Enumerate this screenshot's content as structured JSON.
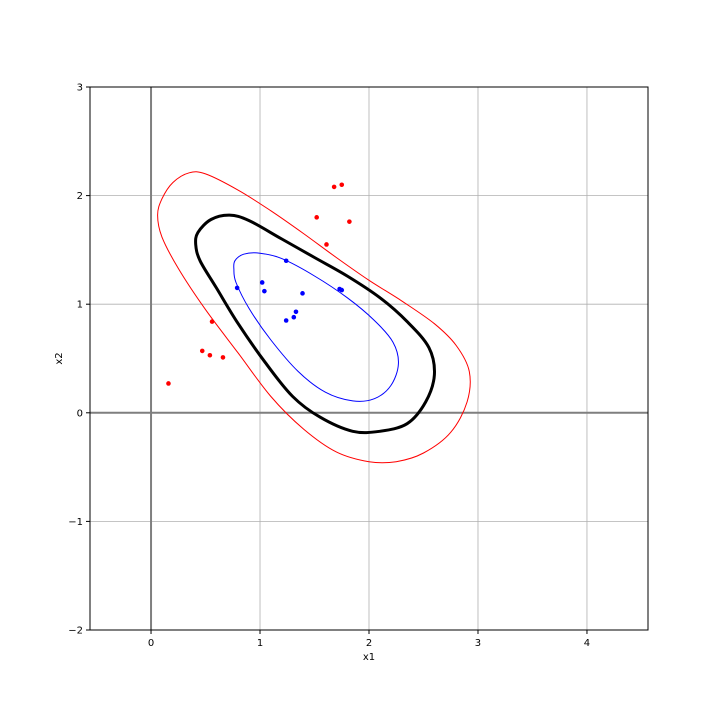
{
  "chart_data": {
    "type": "scatter",
    "title": "",
    "xlabel": "x1",
    "ylabel": "x2",
    "xlim": [
      -0.56,
      4.56
    ],
    "ylim": [
      -2,
      3
    ],
    "grid": true,
    "x_ticks": [
      0,
      1,
      2,
      3,
      4
    ],
    "y_ticks": [
      -2,
      -1,
      0,
      1,
      2,
      3
    ],
    "x_tick_labels": [
      "0",
      "1",
      "2",
      "3",
      "4"
    ],
    "y_tick_labels": [
      "−2",
      "−1",
      "0",
      "1",
      "2",
      "3"
    ],
    "reference_lines": {
      "x": 0,
      "y": 0,
      "color": "#7f7f7f"
    },
    "series": [
      {
        "color": "#ff0000",
        "points": [
          [
            0.16,
            0.27
          ],
          [
            0.47,
            0.57
          ],
          [
            0.54,
            0.53
          ],
          [
            0.66,
            0.51
          ],
          [
            0.56,
            0.84
          ],
          [
            1.52,
            1.8
          ],
          [
            1.61,
            1.55
          ],
          [
            1.68,
            2.08
          ],
          [
            1.75,
            2.1
          ],
          [
            1.82,
            1.76
          ]
        ]
      },
      {
        "color": "#0000ff",
        "points": [
          [
            0.79,
            1.15
          ],
          [
            1.02,
            1.2
          ],
          [
            1.04,
            1.12
          ],
          [
            1.24,
            1.4
          ],
          [
            1.24,
            0.85
          ],
          [
            1.31,
            0.88
          ],
          [
            1.33,
            0.93
          ],
          [
            1.39,
            1.1
          ],
          [
            1.73,
            1.14
          ],
          [
            1.75,
            1.13
          ]
        ]
      }
    ],
    "contours": [
      {
        "color": "#ff0000",
        "line_width": 1,
        "points": [
          [
            0.1,
            1.97
          ],
          [
            0.2,
            2.12
          ],
          [
            0.35,
            2.21
          ],
          [
            0.5,
            2.2
          ],
          [
            0.8,
            2.05
          ],
          [
            1.1,
            1.86
          ],
          [
            1.4,
            1.65
          ],
          [
            1.7,
            1.43
          ],
          [
            2.0,
            1.22
          ],
          [
            2.3,
            1.03
          ],
          [
            2.6,
            0.82
          ],
          [
            2.8,
            0.62
          ],
          [
            2.92,
            0.38
          ],
          [
            2.9,
            0.1
          ],
          [
            2.75,
            -0.18
          ],
          [
            2.5,
            -0.37
          ],
          [
            2.25,
            -0.45
          ],
          [
            2.0,
            -0.45
          ],
          [
            1.7,
            -0.36
          ],
          [
            1.4,
            -0.15
          ],
          [
            1.1,
            0.15
          ],
          [
            0.8,
            0.55
          ],
          [
            0.5,
            0.95
          ],
          [
            0.25,
            1.33
          ],
          [
            0.1,
            1.62
          ],
          [
            0.06,
            1.82
          ],
          [
            0.1,
            1.97
          ]
        ]
      },
      {
        "color": "#000000",
        "line_width": 3,
        "points": [
          [
            0.43,
            1.66
          ],
          [
            0.55,
            1.78
          ],
          [
            0.72,
            1.82
          ],
          [
            0.9,
            1.77
          ],
          [
            1.2,
            1.6
          ],
          [
            1.5,
            1.43
          ],
          [
            1.8,
            1.26
          ],
          [
            2.1,
            1.06
          ],
          [
            2.35,
            0.84
          ],
          [
            2.55,
            0.6
          ],
          [
            2.6,
            0.35
          ],
          [
            2.52,
            0.1
          ],
          [
            2.35,
            -0.1
          ],
          [
            2.1,
            -0.17
          ],
          [
            1.85,
            -0.17
          ],
          [
            1.55,
            -0.04
          ],
          [
            1.3,
            0.15
          ],
          [
            1.05,
            0.46
          ],
          [
            0.8,
            0.82
          ],
          [
            0.6,
            1.15
          ],
          [
            0.45,
            1.4
          ],
          [
            0.41,
            1.55
          ],
          [
            0.43,
            1.66
          ]
        ]
      },
      {
        "color": "#0000ff",
        "line_width": 1,
        "points": [
          [
            0.77,
            1.4
          ],
          [
            0.85,
            1.46
          ],
          [
            1.0,
            1.47
          ],
          [
            1.2,
            1.42
          ],
          [
            1.5,
            1.26
          ],
          [
            1.8,
            1.06
          ],
          [
            2.05,
            0.85
          ],
          [
            2.22,
            0.65
          ],
          [
            2.27,
            0.45
          ],
          [
            2.2,
            0.25
          ],
          [
            2.05,
            0.13
          ],
          [
            1.85,
            0.11
          ],
          [
            1.6,
            0.19
          ],
          [
            1.35,
            0.38
          ],
          [
            1.1,
            0.67
          ],
          [
            0.9,
            0.96
          ],
          [
            0.78,
            1.2
          ],
          [
            0.76,
            1.32
          ],
          [
            0.77,
            1.4
          ]
        ]
      }
    ]
  }
}
